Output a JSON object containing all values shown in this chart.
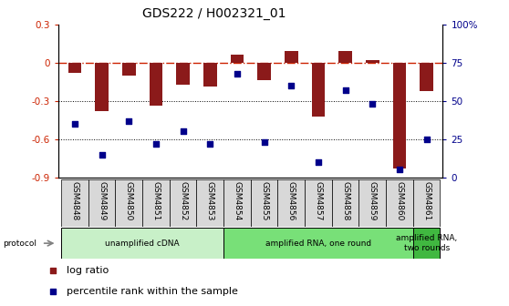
{
  "title": "GDS222 / H002321_01",
  "samples": [
    "GSM4848",
    "GSM4849",
    "GSM4850",
    "GSM4851",
    "GSM4852",
    "GSM4853",
    "GSM4854",
    "GSM4855",
    "GSM4856",
    "GSM4857",
    "GSM4858",
    "GSM4859",
    "GSM4860",
    "GSM4861"
  ],
  "log_ratio": [
    -0.08,
    -0.38,
    -0.1,
    -0.34,
    -0.17,
    -0.19,
    0.06,
    -0.14,
    0.09,
    -0.42,
    0.09,
    0.02,
    -0.83,
    -0.22
  ],
  "percentile": [
    35,
    15,
    37,
    22,
    30,
    22,
    68,
    23,
    60,
    10,
    57,
    48,
    5,
    25
  ],
  "ylim_left": [
    -0.9,
    0.3
  ],
  "ylim_right": [
    0,
    100
  ],
  "yticks_left": [
    -0.9,
    -0.6,
    -0.3,
    0.0,
    0.3
  ],
  "yticks_right": [
    0,
    25,
    50,
    75,
    100
  ],
  "ytick_labels_left": [
    "-0.9",
    "-0.6",
    "-0.3",
    "0",
    "0.3"
  ],
  "ytick_labels_right": [
    "0",
    "25",
    "50",
    "75",
    "100%"
  ],
  "bar_color": "#8B1A1A",
  "dot_color": "#00008B",
  "hline_color": "#CC2200",
  "dotline_color": "#000000",
  "protocol_groups": [
    {
      "label": "unamplified cDNA",
      "start": 0,
      "end": 5,
      "color": "#c8f0c8"
    },
    {
      "label": "amplified RNA, one round",
      "start": 6,
      "end": 12,
      "color": "#78e078"
    },
    {
      "label": "amplified RNA,\ntwo rounds",
      "start": 13,
      "end": 13,
      "color": "#40b840"
    }
  ],
  "legend_items": [
    {
      "label": "log ratio",
      "color": "#8B1A1A"
    },
    {
      "label": "percentile rank within the sample",
      "color": "#00008B"
    }
  ],
  "bg_color": "#ffffff"
}
